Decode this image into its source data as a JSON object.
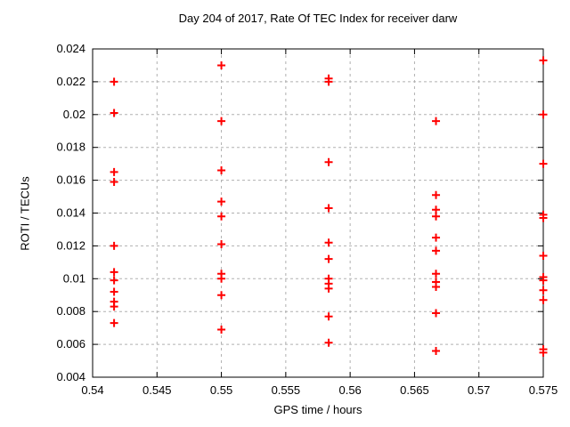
{
  "title": "Day 204 of 2017, Rate Of TEC Index for receiver darw",
  "chart_data": {
    "type": "scatter",
    "title": "Day 204 of 2017, Rate Of TEC Index for receiver darw",
    "xlabel": "GPS time / hours",
    "ylabel": "ROTI / TECUs",
    "xlim": [
      0.54,
      0.575
    ],
    "ylim": [
      0.004,
      0.024
    ],
    "grid": true,
    "legend": "none",
    "marker": "plus",
    "marker_color": "#ff0000",
    "grid_color": "#b0b0b0",
    "axis_color": "#000000",
    "x_ticks": [
      0.54,
      0.545,
      0.55,
      0.555,
      0.56,
      0.565,
      0.57,
      0.575
    ],
    "x_tick_labels": [
      "0.54",
      "0.545",
      "0.55",
      "0.555",
      "0.56",
      "0.565",
      "0.57",
      "0.575"
    ],
    "y_ticks": [
      0.004,
      0.006,
      0.008,
      0.01,
      0.012,
      0.014,
      0.016,
      0.018,
      0.02,
      0.022,
      0.024
    ],
    "y_tick_labels": [
      "0.004",
      "0.006",
      "0.008",
      "0.01",
      "0.012",
      "0.014",
      "0.016",
      "0.018",
      "0.02",
      "0.022",
      "0.024"
    ],
    "series": [
      {
        "name": "ROTI",
        "x": [
          0.541667,
          0.541667,
          0.541667,
          0.541667,
          0.541667,
          0.541667,
          0.541667,
          0.541667,
          0.541667,
          0.541667,
          0.541667,
          0.55,
          0.55,
          0.55,
          0.55,
          0.55,
          0.55,
          0.55,
          0.55,
          0.55,
          0.55,
          0.558333,
          0.558333,
          0.558333,
          0.558333,
          0.558333,
          0.558333,
          0.558333,
          0.558333,
          0.558333,
          0.558333,
          0.558333,
          0.566667,
          0.566667,
          0.566667,
          0.566667,
          0.566667,
          0.566667,
          0.566667,
          0.566667,
          0.566667,
          0.566667,
          0.566667,
          0.575,
          0.575,
          0.575,
          0.575,
          0.575,
          0.575,
          0.575,
          0.575,
          0.575,
          0.575,
          0.575,
          0.575
        ],
        "y": [
          0.022,
          0.0201,
          0.0165,
          0.0159,
          0.012,
          0.0104,
          0.0099,
          0.0092,
          0.0086,
          0.0083,
          0.0073,
          0.023,
          0.0196,
          0.0166,
          0.0147,
          0.0138,
          0.0121,
          0.0103,
          0.01,
          0.009,
          0.0069,
          0.0222,
          0.022,
          0.0171,
          0.0143,
          0.0122,
          0.0112,
          0.01,
          0.0097,
          0.0094,
          0.0077,
          0.0061,
          0.0196,
          0.0151,
          0.0142,
          0.0138,
          0.0125,
          0.0117,
          0.0103,
          0.0098,
          0.0095,
          0.0079,
          0.0056,
          0.0233,
          0.02,
          0.017,
          0.0139,
          0.0137,
          0.0114,
          0.0101,
          0.0099,
          0.0093,
          0.0087,
          0.0057,
          0.0055
        ]
      }
    ]
  }
}
